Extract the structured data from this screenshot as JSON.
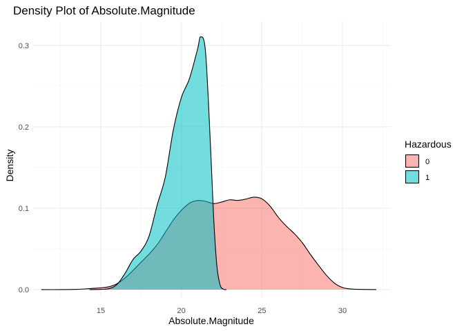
{
  "chart_data": {
    "type": "area",
    "title": "Density Plot of Absolute.Magnitude",
    "xlabel": "Absolute.Magnitude",
    "ylabel": "Density",
    "xlim": [
      10.8,
      33.0
    ],
    "ylim": [
      -0.0085,
      0.3295
    ],
    "x_ticks": [
      15,
      20,
      25,
      30
    ],
    "y_ticks": [
      0.0,
      0.1,
      0.2,
      0.3
    ],
    "y_tick_labels": [
      "0.0",
      "0.1",
      "0.2",
      "0.3"
    ],
    "grid": true,
    "legend": {
      "title": "Hazardous",
      "position": "right"
    },
    "series": [
      {
        "name": "0",
        "color": "#F8766D",
        "points": [
          [
            11.3,
            0.0
          ],
          [
            12.5,
            0.0
          ],
          [
            13.5,
            0.0003
          ],
          [
            14.5,
            0.0015
          ],
          [
            15.0,
            0.0022
          ],
          [
            15.5,
            0.0035
          ],
          [
            16.0,
            0.0072
          ],
          [
            16.5,
            0.0142
          ],
          [
            17.0,
            0.0236
          ],
          [
            17.5,
            0.0337
          ],
          [
            18.0,
            0.0437
          ],
          [
            18.5,
            0.0553
          ],
          [
            19.0,
            0.0703
          ],
          [
            19.5,
            0.0855
          ],
          [
            20.0,
            0.0974
          ],
          [
            20.5,
            0.1062
          ],
          [
            21.0,
            0.1094
          ],
          [
            21.5,
            0.1085
          ],
          [
            22.0,
            0.1057
          ],
          [
            22.5,
            0.1076
          ],
          [
            23.0,
            0.1103
          ],
          [
            23.5,
            0.1096
          ],
          [
            24.0,
            0.1112
          ],
          [
            24.5,
            0.1135
          ],
          [
            25.0,
            0.1115
          ],
          [
            25.5,
            0.1027
          ],
          [
            26.0,
            0.0893
          ],
          [
            26.5,
            0.0783
          ],
          [
            27.0,
            0.069
          ],
          [
            27.5,
            0.0578
          ],
          [
            28.0,
            0.0435
          ],
          [
            28.5,
            0.0302
          ],
          [
            29.0,
            0.0177
          ],
          [
            29.5,
            0.008
          ],
          [
            30.0,
            0.0026
          ],
          [
            30.5,
            0.0008
          ],
          [
            31.0,
            0.0003
          ],
          [
            32.1,
            0.0
          ]
        ]
      },
      {
        "name": "1",
        "color": "#00BFC4",
        "points": [
          [
            14.3,
            0.0
          ],
          [
            15.0,
            0.0003
          ],
          [
            15.5,
            0.0012
          ],
          [
            16.0,
            0.0062
          ],
          [
            16.5,
            0.0198
          ],
          [
            17.0,
            0.037
          ],
          [
            17.5,
            0.0475
          ],
          [
            18.0,
            0.066
          ],
          [
            18.5,
            0.104
          ],
          [
            19.0,
            0.138
          ],
          [
            19.5,
            0.196
          ],
          [
            20.0,
            0.236
          ],
          [
            20.5,
            0.259
          ],
          [
            21.0,
            0.295
          ],
          [
            21.2,
            0.3105
          ],
          [
            21.5,
            0.292
          ],
          [
            21.8,
            0.18
          ],
          [
            22.0,
            0.09
          ],
          [
            22.2,
            0.03
          ],
          [
            22.4,
            0.006
          ],
          [
            22.6,
            0.0006
          ],
          [
            22.8,
            0.0
          ]
        ]
      }
    ]
  }
}
